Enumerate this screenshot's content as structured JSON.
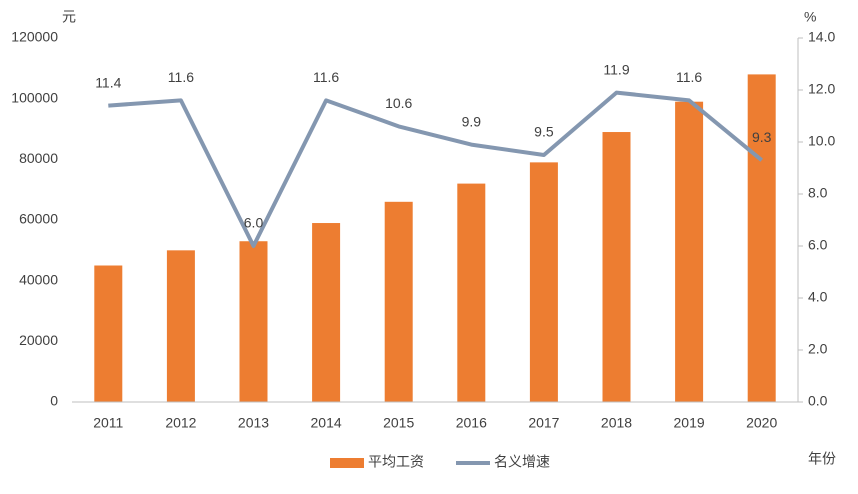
{
  "chart_data": {
    "type": "bar-line",
    "y_label": "元",
    "y2_label": "%",
    "x_label": "年份",
    "categories": [
      "2011",
      "2012",
      "2013",
      "2014",
      "2015",
      "2016",
      "2017",
      "2018",
      "2019",
      "2020"
    ],
    "series": [
      {
        "name": "平均工资",
        "type": "bar",
        "color": "#ed7d31",
        "values": [
          45000,
          50000,
          53000,
          59000,
          66000,
          72000,
          79000,
          89000,
          99000,
          108000
        ]
      },
      {
        "name": "名义增速",
        "type": "line",
        "axis": "y2",
        "color": "#8497b0",
        "values": [
          11.4,
          11.6,
          6.0,
          11.6,
          10.6,
          9.9,
          9.5,
          11.9,
          11.6,
          9.3
        ],
        "value_labels": [
          "11.4",
          "11.6",
          "6.0",
          "11.6",
          "10.6",
          "9.9",
          "9.5",
          "11.9",
          "11.6",
          "9.3"
        ]
      }
    ],
    "ylim": [
      0,
      120000
    ],
    "yticks": [
      0,
      20000,
      40000,
      60000,
      80000,
      100000,
      120000
    ],
    "y2lim": [
      0,
      14
    ],
    "y2ticks": [
      {
        "value": 0,
        "label": "0.0"
      },
      {
        "value": 2,
        "label": "2.0"
      },
      {
        "value": 4,
        "label": "4.0"
      },
      {
        "value": 6,
        "label": "6.0"
      },
      {
        "value": 8,
        "label": "8.0"
      },
      {
        "value": 10,
        "label": "10.0"
      },
      {
        "value": 12,
        "label": "12.0"
      },
      {
        "value": 14,
        "label": "14.0"
      }
    ],
    "legend": "bottom"
  }
}
